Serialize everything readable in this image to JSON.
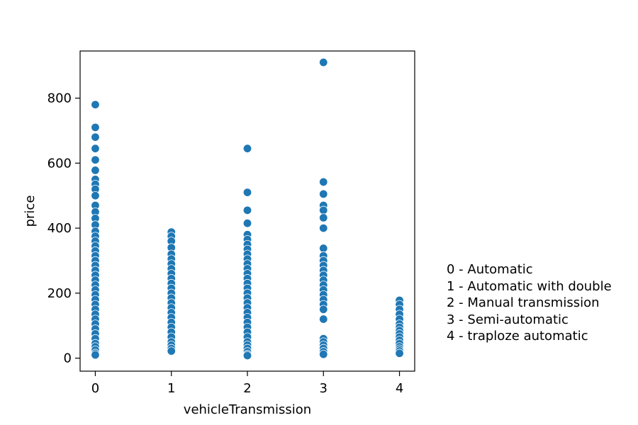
{
  "chart_data": {
    "type": "scatter",
    "xlabel": "vehicleTransmission",
    "ylabel": "price",
    "xlim": [
      -0.2,
      4.2
    ],
    "ylim": [
      -40,
      945
    ],
    "x_ticks": [
      0,
      1,
      2,
      3,
      4
    ],
    "y_ticks": [
      0,
      200,
      400,
      600,
      800
    ],
    "grid": false,
    "marker_color": "#1f77b4",
    "series": [
      {
        "x": 0,
        "values": [
          780,
          710,
          680,
          645,
          610,
          578,
          550,
          535,
          520,
          500,
          470,
          450,
          430,
          410,
          390,
          375,
          360,
          345,
          330,
          315,
          300,
          285,
          270,
          255,
          240,
          225,
          210,
          195,
          180,
          165,
          150,
          135,
          120,
          105,
          90,
          75,
          60,
          45,
          35,
          25,
          15,
          10
        ]
      },
      {
        "x": 1,
        "values": [
          388,
          375,
          360,
          340,
          320,
          305,
          290,
          275,
          260,
          245,
          230,
          215,
          200,
          185,
          170,
          155,
          140,
          125,
          110,
          95,
          80,
          65,
          50,
          40,
          30,
          22
        ]
      },
      {
        "x": 2,
        "values": [
          645,
          510,
          455,
          415,
          380,
          365,
          350,
          335,
          320,
          305,
          290,
          275,
          260,
          245,
          230,
          215,
          200,
          185,
          170,
          155,
          140,
          125,
          110,
          95,
          80,
          65,
          50,
          40,
          30,
          20,
          12,
          8
        ]
      },
      {
        "x": 3,
        "values": [
          910,
          542,
          505,
          470,
          455,
          432,
          400,
          338,
          315,
          300,
          285,
          270,
          255,
          240,
          225,
          210,
          195,
          180,
          165,
          150,
          120,
          60,
          50,
          40,
          30,
          20,
          12
        ]
      },
      {
        "x": 4,
        "values": [
          178,
          165,
          150,
          135,
          120,
          105,
          95,
          85,
          75,
          65,
          55,
          45,
          35,
          28,
          22,
          15
        ]
      }
    ],
    "annotations": [
      "0 - Automatic",
      "1 - Automatic with double",
      "2 - Manual transmission",
      "3 - Semi-automatic",
      "4 - traploze automatic"
    ]
  }
}
